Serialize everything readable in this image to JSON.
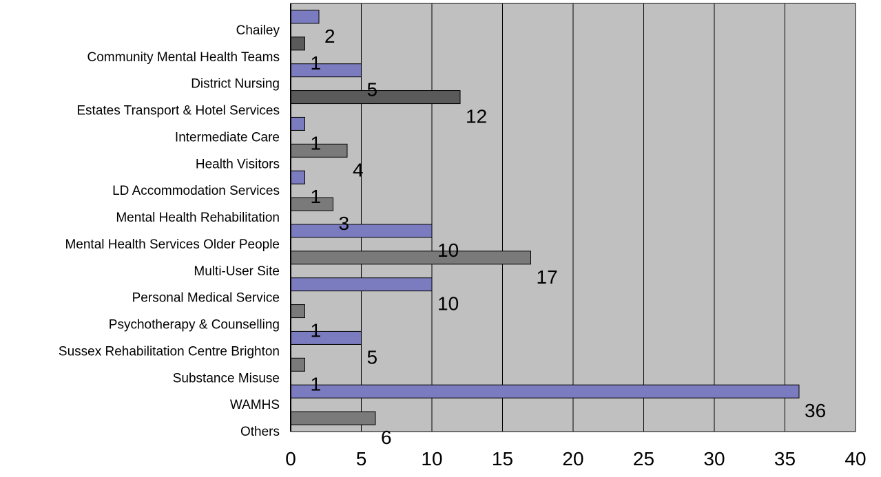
{
  "chart_data": {
    "type": "bar",
    "orientation": "horizontal",
    "categories": [
      "Chailey",
      "Community Mental Health Teams",
      "District Nursing",
      "Estates Transport & Hotel Services",
      "Intermediate Care",
      "Health Visitors",
      "LD Accommodation Services",
      "Mental Health Rehabilitation",
      "Mental Health Services Older People",
      "Multi-User Site",
      "Personal Medical Service",
      "Psychotherapy & Counselling",
      "Sussex Rehabilitation Centre Brighton",
      "Substance Misuse",
      "WAMHS",
      "Others"
    ],
    "values": [
      2,
      1,
      5,
      12,
      1,
      4,
      1,
      3,
      10,
      17,
      10,
      1,
      5,
      1,
      36,
      6
    ],
    "bar_colors": [
      "#7b7bbf",
      "#5a5a5a",
      "#7b7bbf",
      "#5a5a5a",
      "#7b7bbf",
      "#7a7a7a",
      "#7b7bbf",
      "#7a7a7a",
      "#7b7bbf",
      "#7a7a7a",
      "#7b7bbf",
      "#7a7a7a",
      "#7b7bbf",
      "#7a7a7a",
      "#7b7bbf",
      "#7a7a7a"
    ],
    "xlim": [
      0,
      40
    ],
    "x_ticks": [
      "0",
      "5",
      "10",
      "15",
      "20",
      "25",
      "30",
      "35",
      "40"
    ],
    "grid": "vertical",
    "plot_background": "#c0c0c0",
    "title": "",
    "xlabel": "",
    "ylabel": ""
  }
}
